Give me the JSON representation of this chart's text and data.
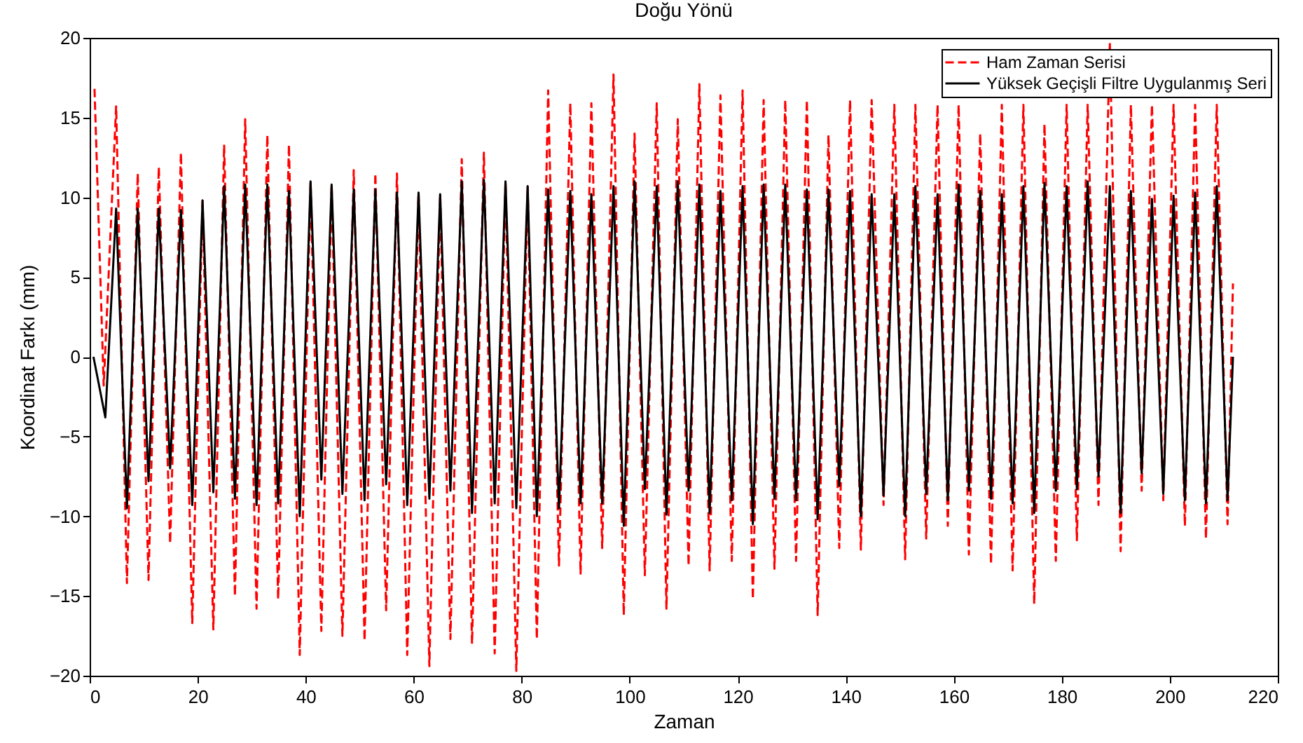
{
  "chart_data": {
    "type": "line",
    "title": "Doğu Yönü",
    "xlabel": "Zaman",
    "ylabel": "Koordinat Farkı (mm)",
    "xlim": [
      0,
      220
    ],
    "ylim": [
      -20,
      20
    ],
    "xticks": [
      0,
      20,
      40,
      60,
      80,
      100,
      120,
      140,
      160,
      180,
      200,
      220
    ],
    "yticks": [
      -20,
      -15,
      -10,
      -5,
      0,
      5,
      10,
      15,
      20
    ],
    "legend": "top right",
    "series": [
      {
        "name": "Ham Zaman Serisi",
        "color": "#ff0000",
        "line_style": "dashed",
        "x": [
          0.9,
          2.6,
          4.9,
          6.9,
          8.9,
          10.9,
          12.8,
          14.9,
          16.9,
          19.0,
          20.9,
          22.9,
          24.9,
          26.9,
          28.8,
          30.9,
          32.9,
          34.9,
          36.9,
          38.9,
          40.9,
          42.9,
          44.8,
          46.8,
          48.9,
          50.9,
          52.9,
          54.9,
          56.9,
          58.8,
          60.9,
          62.9,
          64.9,
          66.8,
          68.9,
          70.8,
          73.0,
          75.0,
          77.0,
          79.0,
          81.1,
          82.8,
          84.9,
          86.9,
          89.0,
          90.9,
          92.9,
          94.9,
          97.0,
          98.9,
          100.9,
          102.8,
          105.0,
          106.8,
          108.9,
          110.9,
          112.9,
          114.8,
          116.8,
          118.9,
          120.9,
          122.8,
          124.8,
          126.8,
          128.8,
          130.8,
          132.8,
          134.8,
          136.8,
          138.8,
          140.8,
          142.8,
          144.8,
          147.0,
          149.0,
          151.0,
          152.9,
          154.9,
          157.0,
          158.9,
          160.9,
          162.8,
          164.9,
          166.9,
          168.9,
          170.9,
          172.9,
          174.9,
          176.8,
          178.9,
          180.9,
          182.8,
          184.8,
          186.8,
          188.9,
          190.9,
          192.8,
          194.8,
          196.7,
          198.8,
          200.7,
          202.8,
          204.7,
          206.7,
          208.7,
          210.7,
          211.7
        ],
        "values": [
          16.8,
          -1.8,
          15.7,
          -14.2,
          11.5,
          -14.0,
          11.9,
          -11.7,
          12.8,
          -16.7,
          9.8,
          -17.1,
          13.3,
          -15.0,
          14.9,
          -15.8,
          13.9,
          -15.2,
          13.3,
          -18.7,
          11.0,
          -17.2,
          10.8,
          -17.5,
          11.7,
          -17.8,
          11.5,
          -15.9,
          11.5,
          -18.7,
          10.3,
          -19.4,
          10.2,
          -17.7,
          12.4,
          -18.0,
          12.8,
          -18.6,
          11.0,
          -19.7,
          10.7,
          -17.7,
          16.7,
          -13.1,
          15.9,
          -13.6,
          15.9,
          -12.0,
          17.7,
          -16.2,
          14.0,
          -13.7,
          15.9,
          -15.8,
          14.9,
          -13.1,
          17.1,
          -13.4,
          16.4,
          -12.8,
          16.7,
          -15.2,
          16.1,
          -13.3,
          16.1,
          -12.8,
          16.1,
          -16.2,
          13.9,
          -12.0,
          16.1,
          -12.1,
          16.1,
          -9.3,
          15.8,
          -12.7,
          15.8,
          -11.4,
          15.8,
          -10.6,
          15.8,
          -12.4,
          14.0,
          -13.0,
          15.8,
          -13.4,
          15.8,
          -15.5,
          14.6,
          -12.8,
          15.8,
          -11.5,
          15.8,
          -9.3,
          19.7,
          -12.2,
          15.8,
          -8.4,
          15.8,
          -9.0,
          15.8,
          -10.6,
          15.8,
          -11.4,
          15.8,
          -10.5,
          4.6
        ]
      },
      {
        "name": "Yüksek Geçişli Filtre Uygulanmış Seri",
        "color": "#000000",
        "line_style": "solid",
        "x": [
          0.7,
          2.9,
          4.9,
          6.9,
          8.9,
          10.9,
          12.8,
          14.9,
          16.9,
          19.0,
          20.9,
          22.9,
          24.9,
          26.9,
          28.8,
          30.9,
          32.9,
          34.9,
          36.9,
          38.9,
          40.9,
          42.9,
          44.8,
          46.8,
          48.9,
          50.9,
          52.9,
          54.9,
          56.9,
          58.8,
          60.9,
          62.9,
          64.9,
          66.8,
          68.9,
          70.8,
          73.0,
          75.0,
          77.0,
          79.0,
          81.1,
          82.8,
          84.9,
          86.9,
          89.0,
          90.9,
          92.9,
          94.9,
          97.0,
          98.9,
          100.9,
          102.8,
          105.0,
          106.8,
          108.9,
          110.9,
          112.9,
          114.8,
          116.8,
          118.9,
          120.9,
          122.8,
          124.8,
          126.8,
          128.8,
          130.8,
          132.8,
          134.8,
          136.8,
          138.8,
          140.8,
          142.8,
          144.8,
          147.0,
          149.0,
          151.0,
          152.9,
          154.9,
          157.0,
          158.9,
          160.9,
          162.8,
          164.9,
          166.9,
          168.9,
          170.9,
          172.9,
          174.9,
          176.8,
          178.9,
          180.9,
          182.8,
          184.8,
          186.8,
          188.9,
          190.9,
          192.8,
          194.8,
          196.7,
          198.8,
          200.7,
          202.8,
          204.7,
          206.7,
          208.7,
          210.7,
          211.7
        ],
        "values": [
          0,
          -3.8,
          9.3,
          -9.5,
          9.3,
          -7.8,
          9.3,
          -7.0,
          9.2,
          -9.3,
          9.8,
          -8.5,
          10.7,
          -8.9,
          10.8,
          -9.3,
          10.8,
          -9.2,
          10.4,
          -10.0,
          11.0,
          -7.7,
          10.8,
          -8.6,
          10.5,
          -9.0,
          10.5,
          -8.0,
          10.3,
          -9.3,
          10.3,
          -8.9,
          10.2,
          -8.4,
          11.0,
          -9.8,
          11.1,
          -9.2,
          11.0,
          -9.5,
          10.7,
          -10.0,
          10.5,
          -9.5,
          10.4,
          -9.2,
          10.2,
          -9.2,
          10.7,
          -10.6,
          11.0,
          -8.3,
          10.7,
          -9.9,
          11.0,
          -8.4,
          10.8,
          -9.8,
          10.4,
          -9.0,
          10.7,
          -10.5,
          10.8,
          -8.9,
          10.8,
          -9.0,
          10.5,
          -10.2,
          10.5,
          -8.1,
          10.4,
          -10.0,
          10.2,
          -8.7,
          10.2,
          -10.0,
          10.7,
          -8.6,
          10.2,
          -9.0,
          10.8,
          -8.4,
          10.4,
          -8.9,
          10.2,
          -9.2,
          10.7,
          -9.8,
          10.9,
          -8.4,
          10.7,
          -8.3,
          11.0,
          -7.5,
          10.7,
          -9.8,
          10.4,
          -7.3,
          9.9,
          -8.6,
          10.1,
          -9.0,
          10.3,
          -9.2,
          10.7,
          -9.0,
          0
        ]
      }
    ]
  }
}
